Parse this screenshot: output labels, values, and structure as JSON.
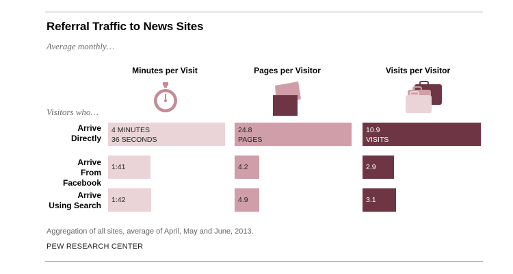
{
  "title": "Referral Traffic to News Sites",
  "subtitle": "Average monthly…",
  "visitors_label": "Visitors who…",
  "footnote": "Aggregation of all sites, average of April, May and June, 2013.",
  "source": "PEW RESEARCH CENTER",
  "colors": {
    "minutes": "#ead4d8",
    "pages": "#cf9ea8",
    "visits": "#6e3645"
  },
  "icons": [
    "stopwatch-icon",
    "pages-icon",
    "suitcases-icon"
  ],
  "chart_data": {
    "type": "bar",
    "title": "Referral Traffic to News Sites",
    "subtitle": "Average monthly…",
    "categories": [
      "Arrive Directly",
      "Arrive From Facebook",
      "Arrive Using Search"
    ],
    "series": [
      {
        "name": "Minutes per Visit",
        "values": [
          4.6,
          1.68,
          1.7
        ],
        "labels": [
          "4 MINUTES\n36 SECONDS",
          "1:41",
          "1:42"
        ]
      },
      {
        "name": "Pages per Visitor",
        "values": [
          24.8,
          4.2,
          4.9
        ],
        "labels": [
          "24.8\nPAGES",
          "4.2",
          "4.9"
        ]
      },
      {
        "name": "Visits per Visitor",
        "values": [
          10.9,
          2.9,
          3.1
        ],
        "labels": [
          "10.9\nVISITS",
          "2.9",
          "3.1"
        ]
      }
    ]
  }
}
